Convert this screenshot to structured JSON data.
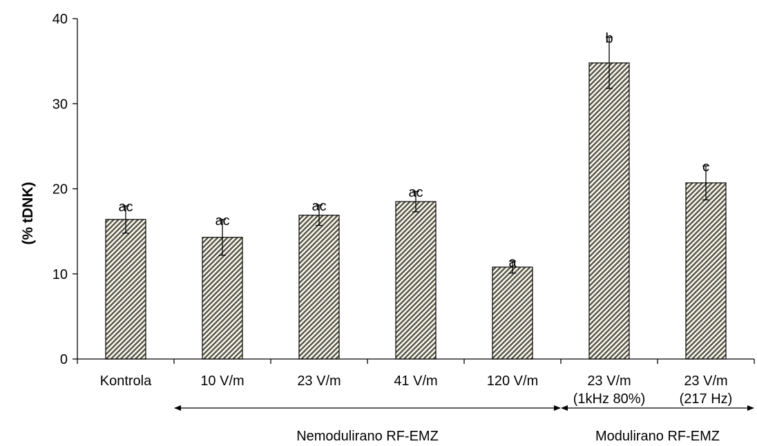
{
  "chart_data": {
    "type": "bar",
    "title": "",
    "xlabel": "",
    "ylabel": "(% tDNK)",
    "ylim": [
      0,
      40
    ],
    "yticks": [
      0,
      10,
      20,
      30,
      40
    ],
    "grid": false,
    "categories": [
      [
        "Kontrola"
      ],
      [
        "10 V/m"
      ],
      [
        "23 V/m"
      ],
      [
        "41 V/m"
      ],
      [
        "120 V/m"
      ],
      [
        "23 V/m",
        "(1kHz 80%)"
      ],
      [
        "23 V/m",
        "(217 Hz)"
      ]
    ],
    "values": [
      16.4,
      14.3,
      16.9,
      18.5,
      10.8,
      34.8,
      20.7
    ],
    "errors": [
      1.6,
      2.1,
      1.2,
      1.2,
      0.7,
      3.0,
      2.0
    ],
    "significance_labels": [
      "ac",
      "ac",
      "ac",
      "ac",
      "a",
      "b",
      "c"
    ],
    "groups": [
      {
        "label": "Nemodulirano RF-EMZ",
        "from_category": 1,
        "to_category": 4
      },
      {
        "label": "Modulirano RF-EMZ",
        "from_category": 5,
        "to_category": 6
      }
    ],
    "colors": {
      "bar_fill": "#5c5a45",
      "bar_stripe_bg": "#ffffff",
      "axis": "#000000"
    }
  }
}
